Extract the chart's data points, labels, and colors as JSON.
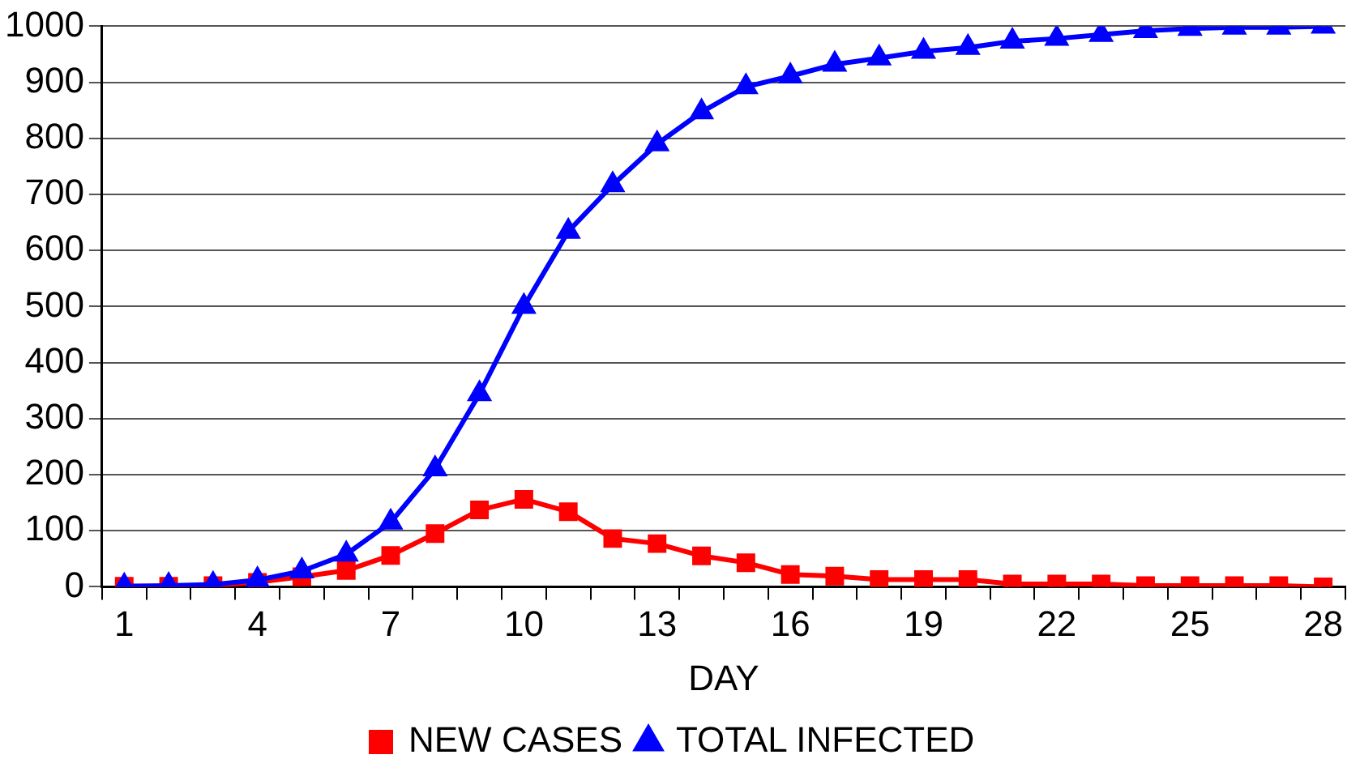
{
  "chart_data": {
    "type": "line",
    "xlabel": "DAY",
    "categories": [
      "1",
      null,
      null,
      "4",
      null,
      null,
      "7",
      null,
      null,
      "10",
      null,
      null,
      "13",
      null,
      null,
      "16",
      null,
      null,
      "19",
      null,
      null,
      "22",
      null,
      null,
      "25",
      null,
      null,
      "28"
    ],
    "series": [
      {
        "name": "NEW CASES",
        "color": "#ff0000",
        "marker": "square",
        "values": [
          1,
          1,
          2,
          8,
          18,
          29,
          56,
          95,
          137,
          156,
          134,
          86,
          77,
          55,
          43,
          22,
          19,
          13,
          13,
          13,
          5,
          5,
          5,
          2,
          2,
          2,
          2,
          0
        ]
      },
      {
        "name": "TOTAL INFECTED",
        "color": "#0000ff",
        "marker": "triangle",
        "values": [
          1,
          2,
          4,
          12,
          28,
          58,
          115,
          210,
          344,
          500,
          634,
          717,
          790,
          847,
          892,
          911,
          932,
          943,
          955,
          962,
          973,
          978,
          985,
          992,
          996,
          998,
          998,
          1000
        ]
      }
    ],
    "ylim": [
      0,
      1000
    ],
    "yticks": [
      0,
      100,
      200,
      300,
      400,
      500,
      600,
      700,
      800,
      900,
      1000
    ],
    "grid": "y",
    "legend": "bottom",
    "line_style": "solid"
  }
}
